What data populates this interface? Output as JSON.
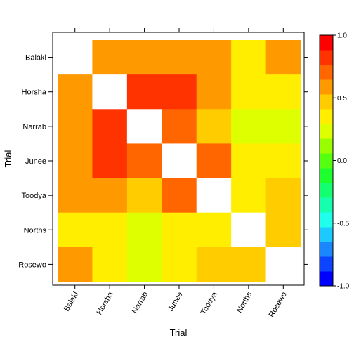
{
  "chart_data": {
    "type": "heatmap",
    "xlabel": "Trial",
    "ylabel": "Trial",
    "x_categories": [
      "Balakl",
      "Horsha",
      "Narrab",
      "Junee",
      "Toodya",
      "Norths",
      "Rosewo"
    ],
    "y_categories": [
      "Balakl",
      "Horsha",
      "Narrab",
      "Junee",
      "Toodya",
      "Norths",
      "Rosewo"
    ],
    "matrix": [
      [
        null,
        0.55,
        0.55,
        0.55,
        0.55,
        0.35,
        0.55
      ],
      [
        0.55,
        null,
        0.8,
        0.8,
        0.55,
        0.3,
        0.3
      ],
      [
        0.55,
        0.8,
        null,
        0.7,
        0.45,
        0.2,
        0.2
      ],
      [
        0.55,
        0.8,
        0.7,
        null,
        0.7,
        0.3,
        0.35
      ],
      [
        0.55,
        0.55,
        0.45,
        0.7,
        null,
        0.35,
        0.45
      ],
      [
        0.35,
        0.3,
        0.2,
        0.3,
        0.35,
        null,
        0.45
      ],
      [
        0.55,
        0.3,
        0.2,
        0.35,
        0.45,
        0.45,
        null
      ]
    ],
    "colorbar": {
      "range": [
        -1.0,
        1.0
      ],
      "ticks": [
        "1.0",
        "0.5",
        "0.0",
        "-0.5",
        "-1.0"
      ],
      "colors": [
        "#0000ff",
        "#0d44ff",
        "#1a87ff",
        "#1ccaff",
        "#1fffec",
        "#15ffaf",
        "#13ff70",
        "#1eff2e",
        "#55ff10",
        "#99ff00",
        "#ddff00",
        "#ffee00",
        "#ffcc00",
        "#ff9900",
        "#ff6600",
        "#ff3300",
        "#ff0000"
      ]
    },
    "grid": false,
    "legend_placement": "right"
  }
}
